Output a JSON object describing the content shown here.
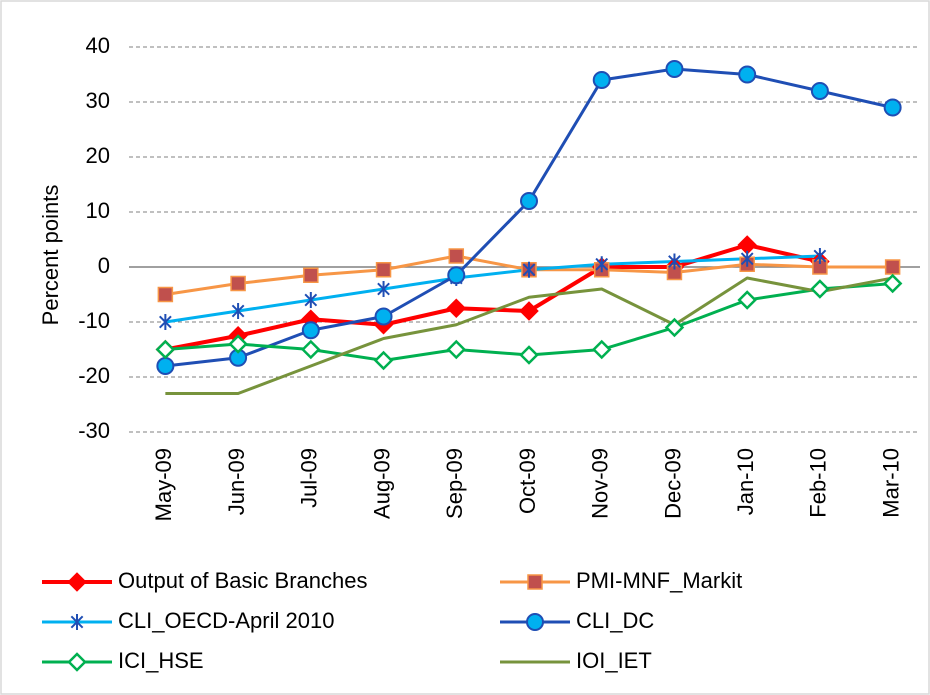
{
  "chart_data": {
    "type": "line",
    "y_label": "Percent  points",
    "categories": [
      "May-09",
      "Jun-09",
      "Jul-09",
      "Aug-09",
      "Sep-09",
      "Oct-09",
      "Nov-09",
      "Dec-09",
      "Jan-10",
      "Feb-10",
      "Mar-10"
    ],
    "ylim": [
      -30,
      40
    ],
    "yticks": [
      -30,
      -20,
      -10,
      0,
      10,
      20,
      30,
      40
    ],
    "grid": true,
    "legend": "bottom",
    "series": [
      {
        "name": "Output of Basic Branches",
        "color": "#ff0000",
        "marker": "diamond",
        "marker_fill": "#ff0000",
        "values": [
          -15,
          -12.5,
          -9.5,
          -10.5,
          -7.5,
          -8,
          0,
          0,
          4,
          1,
          null
        ]
      },
      {
        "name": "PMI-MNF_Markit",
        "color": "#f79646",
        "marker": "square",
        "marker_fill": "#c0504d",
        "values": [
          -5,
          -3,
          -1.5,
          -0.5,
          2,
          -0.5,
          -0.5,
          -1,
          0.5,
          0,
          0
        ]
      },
      {
        "name": "CLI_OECD-April 2010",
        "color": "#00b0f0",
        "marker": "star",
        "marker_fill": "#1f4eb4",
        "values": [
          -10,
          -8,
          -6,
          -4,
          -2,
          -0.5,
          0.5,
          1,
          1.5,
          2,
          null
        ]
      },
      {
        "name": "CLI_DC",
        "color": "#1f4eb4",
        "marker": "circle",
        "marker_fill": "#00b0f0",
        "values": [
          -18,
          -16.5,
          -11.5,
          -9,
          -1.5,
          12,
          34,
          36,
          35,
          32,
          29
        ]
      },
      {
        "name": "ICI_HSE",
        "color": "#00b050",
        "marker": "diamond",
        "marker_fill": "#ffffff",
        "values": [
          -15,
          -14,
          -15,
          -17,
          -15,
          -16,
          -15,
          -11,
          -6,
          -4,
          -3
        ]
      },
      {
        "name": "IOI_IET",
        "color": "#77933c",
        "marker": "none",
        "marker_fill": "#77933c",
        "values": [
          -23,
          -23,
          -18,
          -13,
          -10.5,
          -5.5,
          -4,
          -10.5,
          -2,
          -4.5,
          -2
        ]
      }
    ]
  }
}
